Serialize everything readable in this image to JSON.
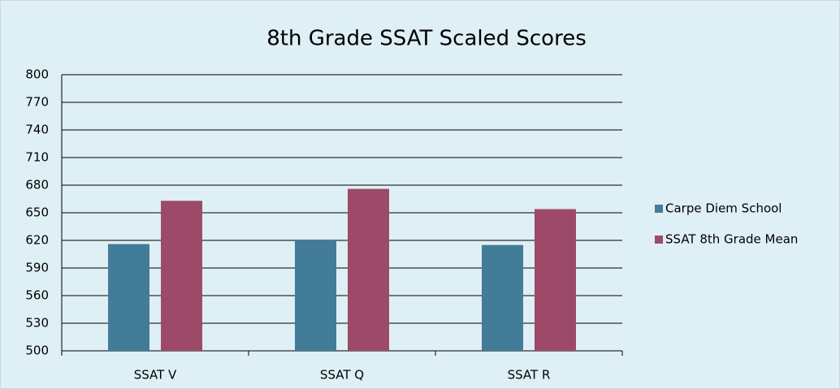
{
  "chart_data": {
    "type": "bar",
    "title": "8th Grade SSAT Scaled Scores",
    "categories": [
      "SSAT V",
      "SSAT Q",
      "SSAT R"
    ],
    "series": [
      {
        "name": "Carpe Diem School",
        "color": "#437c99",
        "values": [
          616,
          620,
          615
        ]
      },
      {
        "name": "SSAT 8th Grade Mean",
        "color": "#9c4a68",
        "values": [
          663,
          676,
          654
        ]
      }
    ],
    "ylim": [
      500,
      800
    ],
    "yticks": [
      500,
      530,
      560,
      590,
      620,
      650,
      680,
      710,
      740,
      770,
      800
    ],
    "grid": true,
    "legend": "right"
  }
}
